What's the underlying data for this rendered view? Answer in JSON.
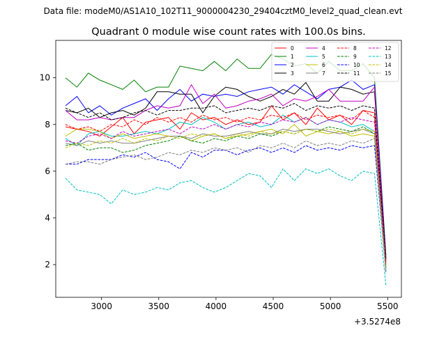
{
  "figure": {
    "suptitle": "Data file: modeM0/AS1A10_102T11_9000004230_29404cztM0_level2_quad_clean.evt"
  },
  "chart_data": {
    "type": "line",
    "title": "Quadrant 0 module wise count rates with 100.0s bins.",
    "xlabel": "",
    "ylabel": "",
    "x_offset_label": "+3.5274e8",
    "xlim": [
      2600,
      5620
    ],
    "ylim": [
      0.6,
      11.6
    ],
    "xticks": [
      3000,
      3500,
      4000,
      4500,
      5000,
      5500
    ],
    "yticks": [
      2,
      4,
      6,
      8,
      10
    ],
    "legend_position": "top-right",
    "x": [
      2685,
      2785,
      2885,
      2985,
      3085,
      3185,
      3285,
      3385,
      3485,
      3585,
      3685,
      3785,
      3885,
      3985,
      4085,
      4185,
      4285,
      4385,
      4485,
      4585,
      4685,
      4785,
      4885,
      4985,
      5085,
      5185,
      5285,
      5385,
      5485
    ],
    "series": [
      {
        "name": "0",
        "color": "#ff0000",
        "dash": "solid",
        "values": [
          7.9,
          7.8,
          7.7,
          7.5,
          7.9,
          8.3,
          7.6,
          8.1,
          8.2,
          8.3,
          7.8,
          8.5,
          8.2,
          8.3,
          8.0,
          8.2,
          8.0,
          8.1,
          8.8,
          8.2,
          8.5,
          8.0,
          8.7,
          8.2,
          8.4,
          8.0,
          8.6,
          8.5,
          2.0
        ]
      },
      {
        "name": "1",
        "color": "#008000",
        "dash": "solid",
        "values": [
          10.0,
          9.6,
          10.2,
          9.9,
          9.7,
          9.5,
          9.9,
          9.4,
          9.6,
          9.6,
          10.5,
          10.4,
          10.3,
          10.7,
          10.3,
          10.8,
          10.4,
          10.4,
          11.0,
          10.8,
          10.5,
          10.6,
          10.2,
          10.7,
          10.3,
          10.3,
          10.6,
          10.0,
          2.4
        ]
      },
      {
        "name": "2",
        "color": "#0000ff",
        "dash": "solid",
        "values": [
          8.8,
          9.2,
          8.5,
          8.8,
          8.4,
          8.7,
          8.9,
          9.1,
          8.6,
          9.1,
          9.5,
          9.0,
          9.3,
          9.2,
          9.3,
          9.2,
          9.4,
          9.5,
          9.6,
          9.3,
          9.7,
          9.4,
          9.1,
          9.5,
          9.6,
          9.9,
          9.5,
          9.7,
          2.3
        ]
      },
      {
        "name": "3",
        "color": "#000000",
        "dash": "solid",
        "values": [
          8.6,
          8.5,
          8.7,
          8.3,
          8.5,
          8.6,
          8.4,
          8.7,
          9.4,
          9.4,
          9.3,
          9.3,
          8.5,
          9.2,
          9.6,
          9.5,
          9.2,
          9.0,
          9.2,
          9.5,
          9.3,
          9.8,
          9.0,
          9.0,
          9.6,
          9.5,
          9.3,
          9.4,
          2.2
        ]
      },
      {
        "name": "4",
        "color": "#c000c0",
        "dash": "solid",
        "values": [
          8.6,
          8.2,
          8.2,
          8.3,
          8.2,
          8.3,
          8.3,
          8.6,
          8.8,
          8.7,
          8.8,
          9.7,
          8.9,
          9.3,
          8.7,
          8.8,
          9.0,
          9.1,
          9.3,
          8.8,
          9.1,
          9.0,
          9.2,
          9.5,
          9.0,
          9.0,
          9.0,
          9.6,
          2.1
        ]
      },
      {
        "name": "5",
        "color": "#00bfbf",
        "dash": "solid",
        "values": [
          7.4,
          7.1,
          7.6,
          7.7,
          7.5,
          7.5,
          7.6,
          7.7,
          7.6,
          7.8,
          8.1,
          8.0,
          8.3,
          8.1,
          7.8,
          8.0,
          8.1,
          7.9,
          8.0,
          8.4,
          8.1,
          8.3,
          8.0,
          8.2,
          8.1,
          7.9,
          8.0,
          7.7,
          1.9
        ]
      },
      {
        "name": "6",
        "color": "#bfbf00",
        "dash": "solid",
        "values": [
          7.5,
          7.8,
          7.8,
          7.7,
          7.4,
          7.6,
          7.4,
          7.5,
          7.6,
          7.5,
          7.5,
          7.3,
          7.5,
          7.6,
          7.4,
          7.5,
          7.6,
          7.7,
          7.8,
          7.6,
          8.0,
          7.5,
          7.7,
          7.6,
          7.7,
          7.5,
          7.6,
          7.5,
          1.8
        ]
      },
      {
        "name": "7",
        "color": "#808080",
        "dash": "solid",
        "values": [
          7.2,
          7.1,
          7.3,
          7.2,
          7.3,
          7.2,
          7.2,
          7.3,
          7.4,
          7.5,
          7.5,
          7.4,
          7.6,
          7.5,
          7.5,
          7.6,
          7.7,
          7.6,
          7.6,
          7.8,
          7.7,
          7.8,
          7.8,
          7.7,
          7.6,
          7.7,
          7.8,
          7.6,
          1.8
        ]
      },
      {
        "name": "8",
        "color": "#ff0000",
        "dash": "dashed",
        "values": [
          8.0,
          7.8,
          7.9,
          7.7,
          8.0,
          7.9,
          8.2,
          8.0,
          8.3,
          8.1,
          8.3,
          8.1,
          8.4,
          8.2,
          8.3,
          8.1,
          8.3,
          8.2,
          8.4,
          8.3,
          8.5,
          8.2,
          8.4,
          8.3,
          8.4,
          8.2,
          8.6,
          8.3,
          2.1
        ]
      },
      {
        "name": "9",
        "color": "#008000",
        "dash": "dashed",
        "values": [
          7.1,
          7.2,
          6.9,
          7.0,
          7.0,
          6.8,
          6.9,
          7.1,
          7.2,
          7.3,
          7.5,
          7.3,
          7.2,
          7.4,
          7.3,
          7.5,
          7.4,
          7.6,
          7.5,
          7.7,
          7.6,
          7.8,
          7.7,
          7.9,
          7.8,
          7.7,
          7.9,
          7.6,
          1.9
        ]
      },
      {
        "name": "10",
        "color": "#0000ff",
        "dash": "dashed",
        "values": [
          6.3,
          6.3,
          6.5,
          6.5,
          6.5,
          6.7,
          6.6,
          6.8,
          6.5,
          6.4,
          6.1,
          6.8,
          6.6,
          6.9,
          6.9,
          6.7,
          6.9,
          7.0,
          6.8,
          7.0,
          6.8,
          7.1,
          6.9,
          7.0,
          6.9,
          7.1,
          7.0,
          7.1,
          1.7
        ]
      },
      {
        "name": "11",
        "color": "#000000",
        "dash": "dashed",
        "values": [
          8.7,
          8.5,
          8.3,
          8.5,
          8.2,
          8.3,
          8.5,
          8.6,
          8.4,
          8.6,
          8.6,
          8.7,
          8.7,
          8.8,
          8.5,
          8.6,
          8.7,
          8.6,
          8.8,
          8.7,
          8.9,
          8.6,
          8.8,
          8.7,
          8.8,
          8.6,
          8.8,
          8.7,
          2.2
        ]
      },
      {
        "name": "12",
        "color": "#c000c0",
        "dash": "dashed",
        "values": [
          7.3,
          7.2,
          7.5,
          7.6,
          7.4,
          7.7,
          7.5,
          7.6,
          7.7,
          7.8,
          7.6,
          7.9,
          7.8,
          8.0,
          7.8,
          8.0,
          7.9,
          8.1,
          8.0,
          8.2,
          8.1,
          8.3,
          8.0,
          8.2,
          8.1,
          8.3,
          8.2,
          8.1,
          2.0
        ]
      },
      {
        "name": "13",
        "color": "#00bfbf",
        "dash": "dashed",
        "values": [
          5.7,
          5.2,
          5.1,
          5.0,
          4.6,
          5.2,
          5.0,
          5.1,
          5.3,
          5.2,
          5.5,
          5.6,
          5.3,
          5.1,
          5.3,
          5.6,
          5.9,
          5.8,
          5.3,
          6.1,
          5.6,
          6.1,
          5.9,
          6.1,
          5.8,
          5.6,
          6.0,
          5.9,
          1.1
        ]
      },
      {
        "name": "14",
        "color": "#bfbf00",
        "dash": "dashed",
        "values": [
          7.0,
          7.2,
          7.1,
          7.3,
          7.2,
          7.4,
          7.2,
          7.4,
          7.3,
          7.5,
          7.4,
          7.6,
          7.5,
          7.6,
          7.4,
          7.6,
          7.5,
          7.7,
          7.6,
          7.7,
          7.6,
          7.8,
          7.7,
          7.8,
          7.7,
          7.6,
          7.8,
          7.7,
          1.8
        ]
      },
      {
        "name": "15",
        "color": "#808080",
        "dash": "dashed",
        "values": [
          6.3,
          6.4,
          6.4,
          6.3,
          6.5,
          6.6,
          6.7,
          6.5,
          6.6,
          6.8,
          6.7,
          6.9,
          6.8,
          7.0,
          6.9,
          7.0,
          6.8,
          7.1,
          7.0,
          7.2,
          7.0,
          7.3,
          7.1,
          7.2,
          7.1,
          7.3,
          7.2,
          7.4,
          1.6
        ]
      }
    ]
  }
}
